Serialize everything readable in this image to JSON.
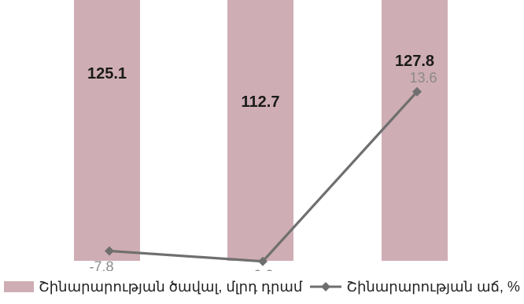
{
  "chart_data": {
    "type": "bar",
    "categories": [
      "",
      "",
      ""
    ],
    "series": [
      {
        "name": "Շինարարության ծավալ, մլրդ դրամ",
        "kind": "bar",
        "values": [
          125.1,
          112.7,
          127.8
        ],
        "labels": [
          "125.1",
          "112.7",
          "127.8"
        ],
        "color": "#cfadb4"
      },
      {
        "name": "Շինարարության աճ, %",
        "kind": "line",
        "values": [
          -7.8,
          -9.2,
          13.6
        ],
        "labels": [
          "-7.8",
          "-9.2",
          "13.6"
        ],
        "color": "#6f6f6f"
      }
    ],
    "title": "",
    "xlabel": "",
    "ylabel": "",
    "legend": "bottom",
    "grid": false
  },
  "legend": {
    "bar_label": "Շինարարության  ծավալ, մլրդ դրամ",
    "line_label": "Շինարարության աճ, %"
  },
  "colors": {
    "bar": "#cfadb4",
    "line": "#6f6f6f",
    "bar_label_text": "#1a1a1a",
    "line_label_text": "#8a8a8a"
  }
}
